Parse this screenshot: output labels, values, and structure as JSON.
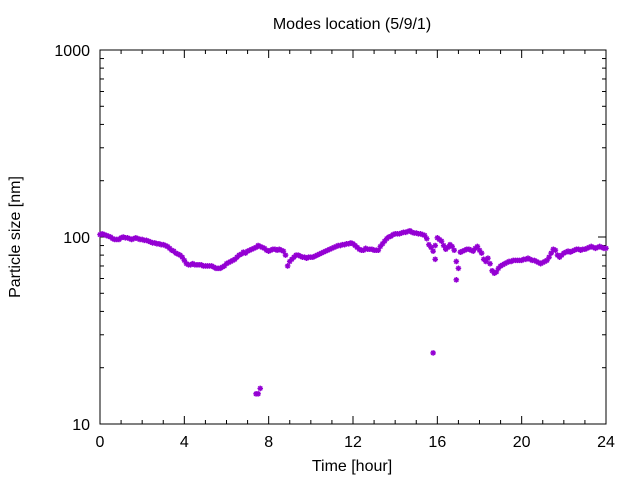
{
  "chart_data": {
    "type": "scatter",
    "title": "Modes location (5/9/1)",
    "xlabel": "Time [hour]",
    "ylabel": "Particle size [nm]",
    "xlim": [
      0,
      24
    ],
    "ylim": [
      10,
      1000
    ],
    "yscale": "log",
    "xticks": [
      0,
      4,
      8,
      12,
      16,
      20,
      24
    ],
    "yticks": [
      10,
      100,
      1000
    ],
    "xtick_labels": [
      "0",
      "4",
      "8",
      "12",
      "16",
      "20",
      "24"
    ],
    "ytick_labels": [
      "10",
      "100",
      "1000"
    ],
    "grid": false,
    "legend": "none",
    "marker_color": "#9400d3",
    "series": [
      {
        "x": [
          0.0,
          0.1,
          0.2,
          0.3,
          0.4,
          0.5,
          0.6,
          0.7,
          0.8,
          0.9,
          1.0,
          1.1,
          1.2,
          1.3,
          1.4,
          1.5,
          1.6,
          1.7,
          1.8,
          1.9,
          2.0,
          2.1,
          2.2,
          2.3,
          2.4,
          2.5,
          2.6,
          2.7,
          2.8,
          2.9,
          3.0,
          3.1,
          3.2,
          3.3,
          3.4,
          3.5,
          3.6,
          3.7,
          3.8,
          3.9,
          4.0,
          4.1,
          4.2,
          4.3,
          4.4,
          4.5,
          4.6,
          4.7,
          4.8,
          4.9,
          5.0,
          5.1,
          5.2,
          5.3,
          5.4,
          5.5,
          5.6,
          5.7,
          5.8,
          5.9,
          6.0,
          6.1,
          6.2,
          6.3,
          6.4,
          6.5,
          6.6,
          6.7,
          6.8,
          6.9,
          7.0,
          7.1,
          7.2,
          7.3,
          7.4,
          7.5,
          7.6,
          7.7,
          7.8,
          7.9,
          8.0,
          8.1,
          8.2,
          8.3,
          8.4,
          8.5,
          8.6,
          8.7,
          8.8,
          8.9,
          9.0,
          9.1,
          9.2,
          9.3,
          9.4,
          9.5,
          9.6,
          9.7,
          9.8,
          9.9,
          10.0,
          10.1,
          10.2,
          10.3,
          10.4,
          10.5,
          10.6,
          10.7,
          10.8,
          10.9,
          11.0,
          11.1,
          11.2,
          11.3,
          11.4,
          11.5,
          11.6,
          11.7,
          11.8,
          11.9,
          12.0,
          12.1,
          12.2,
          12.3,
          12.4,
          12.5,
          12.6,
          12.7,
          12.8,
          12.9,
          13.0,
          13.1,
          13.2,
          13.3,
          13.4,
          13.5,
          13.6,
          13.7,
          13.8,
          13.9,
          14.0,
          14.1,
          14.2,
          14.3,
          14.4,
          14.5,
          14.6,
          14.7,
          14.8,
          14.9,
          15.0,
          15.1,
          15.2,
          15.3,
          15.4,
          15.5,
          15.6,
          15.7,
          15.8,
          15.9,
          16.0,
          16.1,
          16.2,
          16.3,
          16.4,
          16.5,
          16.6,
          16.7,
          16.8,
          16.9,
          17.0,
          17.1,
          17.2,
          17.3,
          17.4,
          17.5,
          17.6,
          17.7,
          17.8,
          17.9,
          18.0,
          18.1,
          18.2,
          18.3,
          18.4,
          18.5,
          18.6,
          18.7,
          18.8,
          18.9,
          19.0,
          19.1,
          19.2,
          19.3,
          19.4,
          19.5,
          19.6,
          19.7,
          19.8,
          19.9,
          20.0,
          20.1,
          20.2,
          20.3,
          20.4,
          20.5,
          20.6,
          20.7,
          20.8,
          20.9,
          21.0,
          21.1,
          21.2,
          21.3,
          21.4,
          21.5,
          21.6,
          21.7,
          21.8,
          21.9,
          22.0,
          22.1,
          22.2,
          22.3,
          22.4,
          22.5,
          22.6,
          22.7,
          22.8,
          22.9,
          23.0,
          23.1,
          23.2,
          23.3,
          23.4,
          23.5,
          23.6,
          23.7,
          23.8,
          23.9,
          24.0,
          7.4,
          7.5,
          7.6,
          15.8,
          16.9,
          17.1,
          15.9
        ],
        "y": [
          103,
          104,
          103,
          102,
          101,
          100,
          98,
          97,
          97,
          97,
          99,
          100,
          99,
          99,
          98,
          97,
          98,
          99,
          98,
          97,
          97,
          96,
          96,
          95,
          94,
          93,
          93,
          92,
          92,
          91,
          91,
          90,
          89,
          87,
          85,
          84,
          82,
          81,
          80,
          78,
          75,
          72,
          71,
          71,
          72,
          71,
          71,
          71,
          71,
          70,
          70,
          70,
          70,
          70,
          69,
          68,
          68,
          68,
          69,
          70,
          72,
          73,
          74,
          75,
          76,
          78,
          80,
          81,
          83,
          82,
          84,
          85,
          86,
          87,
          88,
          90,
          89,
          88,
          87,
          85,
          84,
          85,
          86,
          86,
          85,
          86,
          85,
          84,
          80,
          70,
          74,
          76,
          78,
          80,
          80,
          79,
          78,
          78,
          77,
          78,
          78,
          78,
          79,
          80,
          81,
          82,
          83,
          84,
          85,
          86,
          87,
          88,
          89,
          90,
          90,
          91,
          91,
          92,
          92,
          93,
          92,
          90,
          88,
          86,
          85,
          85,
          87,
          86,
          86,
          86,
          85,
          85,
          85,
          89,
          92,
          95,
          98,
          100,
          101,
          103,
          104,
          104,
          104,
          105,
          106,
          106,
          107,
          108,
          106,
          105,
          105,
          104,
          104,
          103,
          102,
          98,
          91,
          88,
          84,
          76,
          99,
          97,
          95,
          90,
          86,
          88,
          91,
          89,
          85,
          74,
          68,
          83,
          84,
          85,
          86,
          86,
          85,
          84,
          87,
          89,
          85,
          82,
          76,
          74,
          77,
          72,
          66,
          64,
          65,
          68,
          70,
          71,
          72,
          73,
          74,
          74,
          75,
          75,
          75,
          75,
          75,
          76,
          76,
          77,
          76,
          75,
          75,
          74,
          73,
          72,
          73,
          74,
          75,
          78,
          82,
          86,
          85,
          80,
          78,
          80,
          82,
          83,
          84,
          83,
          84,
          85,
          86,
          86,
          85,
          86,
          86,
          87,
          88,
          89,
          88,
          87,
          88,
          89,
          88,
          87,
          87,
          14.5,
          14.5,
          15.5,
          24,
          59,
          83,
          90
        ]
      }
    ]
  }
}
